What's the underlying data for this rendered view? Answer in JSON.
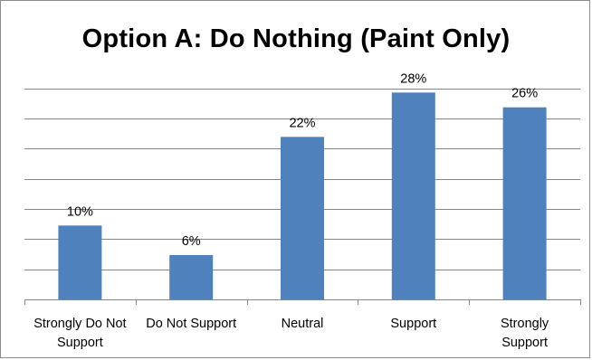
{
  "chart_data": {
    "type": "bar",
    "title": "Option A: Do Nothing (Paint Only)",
    "categories": [
      [
        "Strongly Do Not",
        "Support"
      ],
      [
        "Do Not Support"
      ],
      [
        "Neutral"
      ],
      [
        "Support"
      ],
      [
        "Strongly",
        "Support"
      ]
    ],
    "values": [
      10,
      6,
      22,
      28,
      26
    ],
    "data_labels": [
      "10%",
      "6%",
      "22%",
      "28%",
      "26%"
    ],
    "ylim": [
      0,
      30
    ],
    "y_gridline_step": 4.08,
    "grid": true,
    "legend": "none",
    "colors": {
      "bar": "#4f81bd",
      "gridline": "#868686",
      "axis": "#868686"
    }
  }
}
